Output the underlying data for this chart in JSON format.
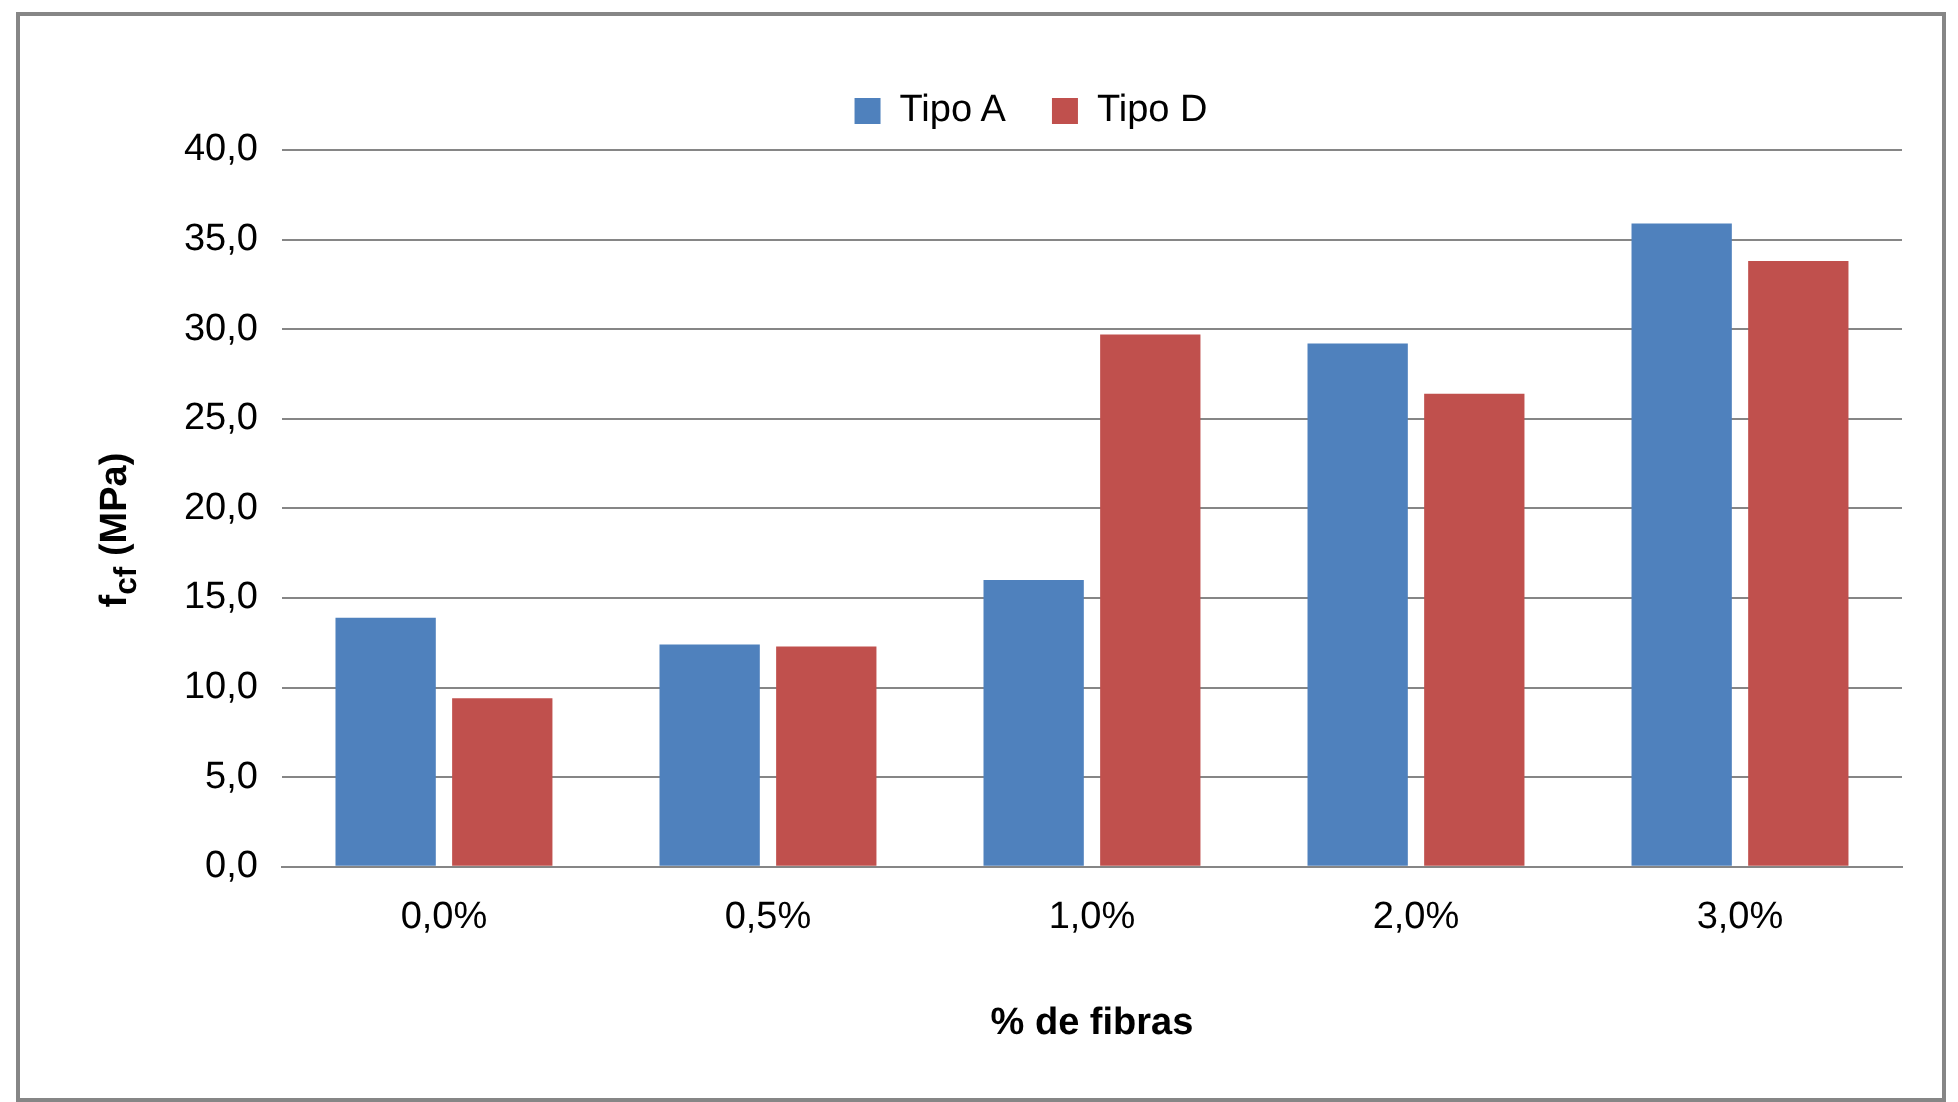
{
  "chart_data": {
    "type": "bar",
    "xlabel": "% de fibras",
    "ylabel": "f$_{cf}$ (MPa)",
    "categories": [
      "0,0%",
      "0,5%",
      "1,0%",
      "2,0%",
      "3,0%"
    ],
    "series": [
      {
        "name": "Tipo A",
        "color": "#4f81bd",
        "values": [
          13.9,
          12.4,
          16.0,
          29.2,
          35.9
        ]
      },
      {
        "name": "Tipo D",
        "color": "#c0504d",
        "values": [
          9.4,
          12.3,
          29.7,
          26.4,
          33.8
        ]
      }
    ],
    "ylim": [
      0,
      40
    ],
    "yticks": [
      {
        "value": 0,
        "label": "0,0"
      },
      {
        "value": 5,
        "label": "5,0"
      },
      {
        "value": 10,
        "label": "10,0"
      },
      {
        "value": 15,
        "label": "15,0"
      },
      {
        "value": 20,
        "label": "20,0"
      },
      {
        "value": 25,
        "label": "25,0"
      },
      {
        "value": 30,
        "label": "30,0"
      },
      {
        "value": 35,
        "label": "35,0"
      },
      {
        "value": 40,
        "label": "40,0"
      }
    ],
    "grid": "y",
    "legend": "top"
  }
}
